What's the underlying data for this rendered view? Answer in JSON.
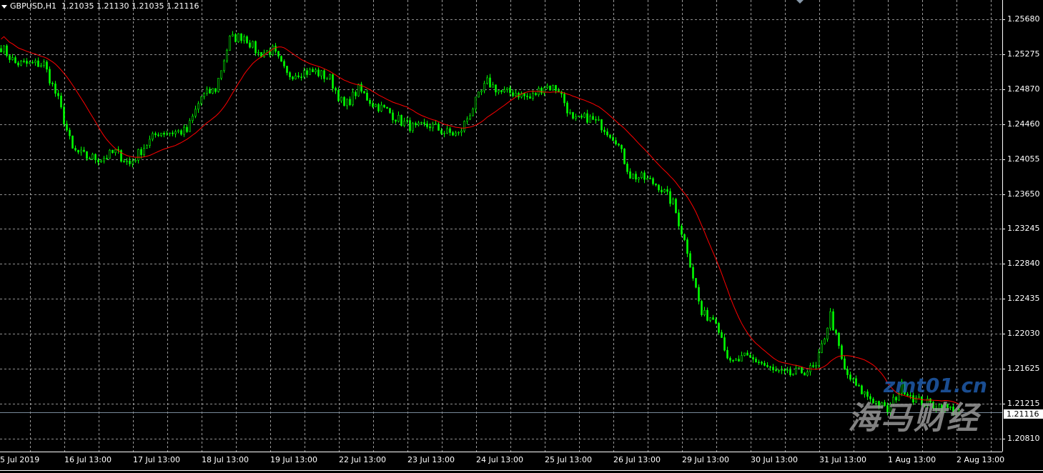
{
  "header": {
    "symbol": "GBPUSD,H1",
    "open": "1.21035",
    "high": "1.21130",
    "low": "1.21035",
    "close": "1.21116"
  },
  "current_price_label": "1.21116",
  "watermark": {
    "text": "海马财经",
    "url": "zmt01.cn"
  },
  "colors": {
    "background": "#000000",
    "bull_candle": "#00ff00",
    "bear_candle": "#00ff00",
    "ma_line": "#ff0000",
    "grid": "#c0c0c0",
    "price_line": "#778899"
  },
  "chart_data": {
    "type": "candlestick",
    "timeframe": "H1",
    "ylim": [
      1.2055,
      1.2595
    ],
    "grid": true,
    "y_ticks": [
      "1.25680",
      "1.25275",
      "1.24870",
      "1.24460",
      "1.24055",
      "1.23650",
      "1.23245",
      "1.22840",
      "1.22435",
      "1.22030",
      "1.21625",
      "1.21215",
      "1.20810"
    ],
    "x_ticks": [
      "5 Jul 2019",
      "16 Jul 13:00",
      "17 Jul 13:00",
      "18 Jul 13:00",
      "19 Jul 13:00",
      "22 Jul 13:00",
      "23 Jul 13:00",
      "24 Jul 13:00",
      "25 Jul 13:00",
      "26 Jul 13:00",
      "29 Jul 13:00",
      "30 Jul 13:00",
      "31 Jul 13:00",
      "1 Aug 13:00",
      "2 Aug 13:00"
    ],
    "close_samples_every_5_bars": [
      1.2536,
      1.2517,
      1.2516,
      1.2516,
      1.2474,
      1.2416,
      1.2408,
      1.2406,
      1.2414,
      1.24,
      1.242,
      1.2437,
      1.2437,
      1.2438,
      1.2478,
      1.2487,
      1.2545,
      1.2549,
      1.2528,
      1.2532,
      1.2503,
      1.2507,
      1.2507,
      1.2499,
      1.2466,
      1.2487,
      1.247,
      1.2462,
      1.2449,
      1.2441,
      1.2445,
      1.2437,
      1.2434,
      1.2466,
      1.2495,
      1.2483,
      1.2483,
      1.2476,
      1.2491,
      1.2487,
      1.2449,
      1.2454,
      1.2445,
      1.2429,
      1.2387,
      1.2383,
      1.2375,
      1.2354,
      1.23,
      1.2225,
      1.2221,
      1.2167,
      1.2175,
      1.2171,
      1.2159,
      1.2155,
      1.2159,
      1.2163,
      1.2225,
      1.2159,
      1.2138,
      1.2126,
      1.2113,
      1.2142,
      1.2126,
      1.2121,
      1.2117,
      1.2112
    ],
    "indicator": {
      "type": "moving-average",
      "period": 20
    }
  }
}
